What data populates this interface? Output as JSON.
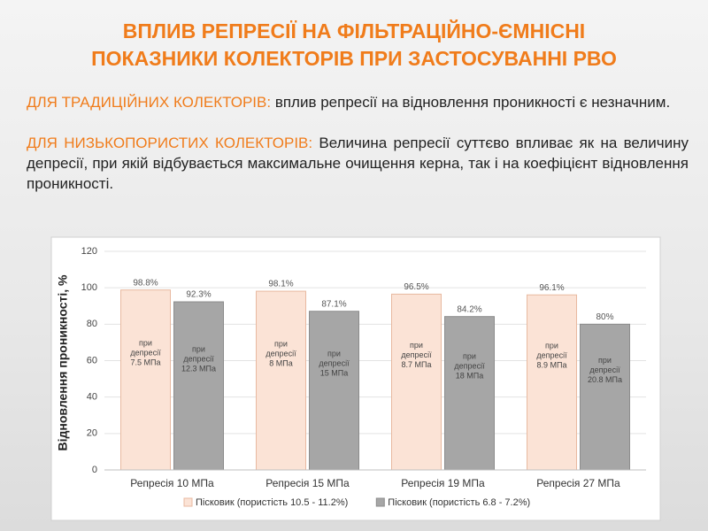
{
  "title": [
    "ВПЛИВ РЕПРЕСІЇ НА ФІЛЬТРАЦІЙНО-ЄМНІСНІ",
    "ПОКАЗНИКИ КОЛЕКТОРІВ ПРИ ЗАСТОСУВАННІ РВО"
  ],
  "paragraphs": [
    {
      "highlight": "ДЛЯ ТРАДИЦІЙНИХ КОЛЕКТОРІВ:",
      "text": "вплив репресії на  відновлення проникності є незначним."
    },
    {
      "highlight": "ДЛЯ НИЗЬКОПОРИСТИХ КОЛЕКТОРІВ:",
      "text": "Величина репресії суттєво впливає як на величину депресії, при якій відбувається максимальне очищення керна, так і на коефіцієнт відновлення проникності."
    }
  ],
  "chart_data": {
    "type": "bar",
    "ylabel": "Відновлення проникності, %",
    "categories": [
      "Репресія 10 МПа",
      "Репресія 15 МПа",
      "Репресія 19 МПа",
      "Репресія 27 МПа"
    ],
    "series": [
      {
        "name": "Пісковик (пористість 10.5 - 11.2%)",
        "color": "#fbe3d6",
        "stroke": "#e8b9a0",
        "values": [
          98.8,
          98.1,
          96.5,
          96.1
        ],
        "value_labels": [
          "98.8%",
          "98.1%",
          "96.5%",
          "96.1%"
        ],
        "annotations": [
          [
            "при",
            "депресії",
            "7.5 МПа"
          ],
          [
            "при",
            "депресії",
            "8 МПа"
          ],
          [
            "при",
            "депресії",
            "8.7 МПа"
          ],
          [
            "при",
            "депресії",
            "8.9 МПа"
          ]
        ]
      },
      {
        "name": "Пісковик (пористість 6.8 - 7.2%)",
        "color": "#a6a6a6",
        "stroke": "#8c8c8c",
        "values": [
          92.3,
          87.1,
          84.2,
          80
        ],
        "value_labels": [
          "92.3%",
          "87.1%",
          "84.2%",
          "80%"
        ],
        "annotations": [
          [
            "при",
            "депресії",
            "12.3 МПа"
          ],
          [
            "при",
            "депресії",
            "15 МПа"
          ],
          [
            "при",
            "депресії",
            "18 МПа"
          ],
          [
            "при",
            "депресії",
            "20.8 МПа"
          ]
        ]
      }
    ],
    "ylim": [
      0,
      120
    ],
    "yticks": [
      0,
      20,
      40,
      60,
      80,
      100,
      120
    ],
    "grid": true,
    "legend": "bottom"
  }
}
